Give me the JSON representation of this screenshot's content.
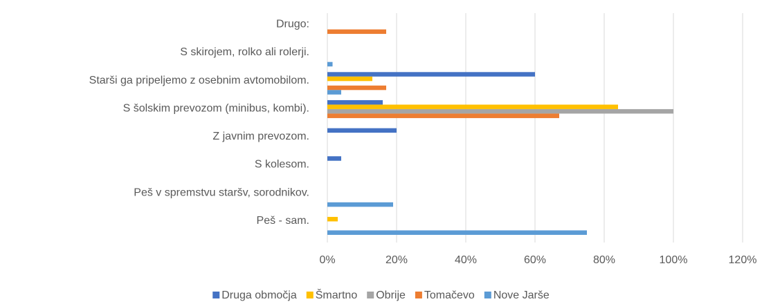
{
  "chart_data": {
    "type": "bar",
    "orientation": "horizontal",
    "categories": [
      "Peš - sam.",
      "Peš v spremstvu staršv, sorodnikov.",
      "S kolesom.",
      "Z javnim prevozom.",
      "S šolskim prevozom (minibus, kombi).",
      "Starši ga pripeljemo z osebnim avtomobilom.",
      "S skirojem, rolko ali rolerji.",
      "Drugo:"
    ],
    "series": [
      {
        "name": "Druga območja",
        "color": "#4472c4",
        "values": [
          0,
          0,
          4,
          20,
          16,
          60,
          0,
          0
        ]
      },
      {
        "name": "Šmartno",
        "color": "#ffc000",
        "values": [
          3,
          0,
          0,
          0,
          84,
          13,
          0,
          0
        ]
      },
      {
        "name": "Obrije",
        "color": "#a5a5a5",
        "values": [
          0,
          0,
          0,
          0,
          100,
          0,
          0,
          0
        ]
      },
      {
        "name": "Tomačevo",
        "color": "#ed7d31",
        "values": [
          0,
          0,
          0,
          0,
          67,
          17,
          0,
          17
        ]
      },
      {
        "name": "Nove Jarše",
        "color": "#5b9bd5",
        "values": [
          75,
          19,
          0,
          0,
          0,
          4,
          1.5,
          0
        ]
      }
    ],
    "xlim": [
      0,
      120
    ],
    "xticks": [
      {
        "value": 0,
        "label": "0%"
      },
      {
        "value": 20,
        "label": "20%"
      },
      {
        "value": 40,
        "label": "40%"
      },
      {
        "value": 60,
        "label": "60%"
      },
      {
        "value": 80,
        "label": "80%"
      },
      {
        "value": 100,
        "label": "100%"
      },
      {
        "value": 120,
        "label": "120%"
      }
    ],
    "grid": true,
    "legend": "bottom"
  }
}
